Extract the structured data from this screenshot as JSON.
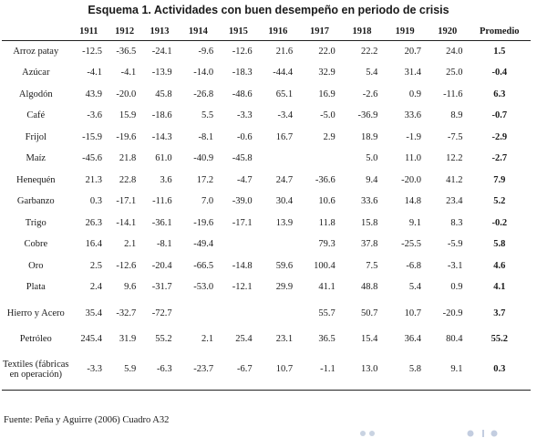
{
  "title": "Esquema 1. Actividades con buen desempeño en periodo de crisis",
  "columns": [
    "",
    "1911",
    "1912",
    "1913",
    "1914",
    "1915",
    "1916",
    "1917",
    "1918",
    "1919",
    "1920",
    "Promedio"
  ],
  "rows": [
    {
      "label": "Arroz patay",
      "values": [
        "-12.5",
        "-36.5",
        "-24.1",
        "-9.6",
        "-12.6",
        "21.6",
        "22.0",
        "22.2",
        "20.7",
        "24.0"
      ],
      "avg": "1.5"
    },
    {
      "label": "Azúcar",
      "values": [
        "-4.1",
        "-4.1",
        "-13.9",
        "-14.0",
        "-18.3",
        "-44.4",
        "32.9",
        "5.4",
        "31.4",
        "25.0"
      ],
      "avg": "-0.4"
    },
    {
      "label": "Algodón",
      "values": [
        "43.9",
        "-20.0",
        "45.8",
        "-26.8",
        "-48.6",
        "65.1",
        "16.9",
        "-2.6",
        "0.9",
        "-11.6"
      ],
      "avg": "6.3"
    },
    {
      "label": "Café",
      "values": [
        "-3.6",
        "15.9",
        "-18.6",
        "5.5",
        "-3.3",
        "-3.4",
        "-5.0",
        "-36.9",
        "33.6",
        "8.9"
      ],
      "avg": "-0.7"
    },
    {
      "label": "Frijol",
      "values": [
        "-15.9",
        "-19.6",
        "-14.3",
        "-8.1",
        "-0.6",
        "16.7",
        "2.9",
        "18.9",
        "-1.9",
        "-7.5"
      ],
      "avg": "-2.9"
    },
    {
      "label": "Maíz",
      "values": [
        "-45.6",
        "21.8",
        "61.0",
        "-40.9",
        "-45.8",
        "",
        "",
        "5.0",
        "11.0",
        "12.2"
      ],
      "avg": "-2.7"
    },
    {
      "label": "Henequén",
      "values": [
        "21.3",
        "22.8",
        "3.6",
        "17.2",
        "-4.7",
        "24.7",
        "-36.6",
        "9.4",
        "-20.0",
        "41.2"
      ],
      "avg": "7.9"
    },
    {
      "label": "Garbanzo",
      "values": [
        "0.3",
        "-17.1",
        "-11.6",
        "7.0",
        "-39.0",
        "30.4",
        "10.6",
        "33.6",
        "14.8",
        "23.4"
      ],
      "avg": "5.2"
    },
    {
      "label": "Trigo",
      "values": [
        "26.3",
        "-14.1",
        "-36.1",
        "-19.6",
        "-17.1",
        "13.9",
        "11.8",
        "15.8",
        "9.1",
        "8.3"
      ],
      "avg": "-0.2"
    },
    {
      "label": "Cobre",
      "values": [
        "16.4",
        "2.1",
        "-8.1",
        "-49.4",
        "",
        "",
        "79.3",
        "37.8",
        "-25.5",
        "-5.9"
      ],
      "avg": "5.8"
    },
    {
      "label": "Oro",
      "values": [
        "2.5",
        "-12.6",
        "-20.4",
        "-66.5",
        "-14.8",
        "59.6",
        "100.4",
        "7.5",
        "-6.8",
        "-3.1"
      ],
      "avg": "4.6"
    },
    {
      "label": "Plata",
      "values": [
        "2.4",
        "9.6",
        "-31.7",
        "-53.0",
        "-12.1",
        "29.9",
        "41.1",
        "48.8",
        "5.4",
        "0.9"
      ],
      "avg": "4.1"
    },
    {
      "label": "Hierro y Acero",
      "values": [
        "35.4",
        "-32.7",
        "-72.7",
        "",
        "",
        "",
        "55.7",
        "50.7",
        "10.7",
        "-20.9"
      ],
      "avg": "3.7"
    },
    {
      "label": "Petróleo",
      "values": [
        "245.4",
        "31.9",
        "55.2",
        "2.1",
        "25.4",
        "23.1",
        "36.5",
        "15.4",
        "36.4",
        "80.4"
      ],
      "avg": "55.2"
    },
    {
      "label": "Textiles (fábricas en operación)",
      "values": [
        "-3.3",
        "5.9",
        "-6.3",
        "-23.7",
        "-6.7",
        "10.7",
        "-1.1",
        "13.0",
        "5.8",
        "9.1"
      ],
      "avg": "0.3"
    }
  ],
  "source": "Fuente: Peña y Aguirre (2006) Cuadro A32"
}
